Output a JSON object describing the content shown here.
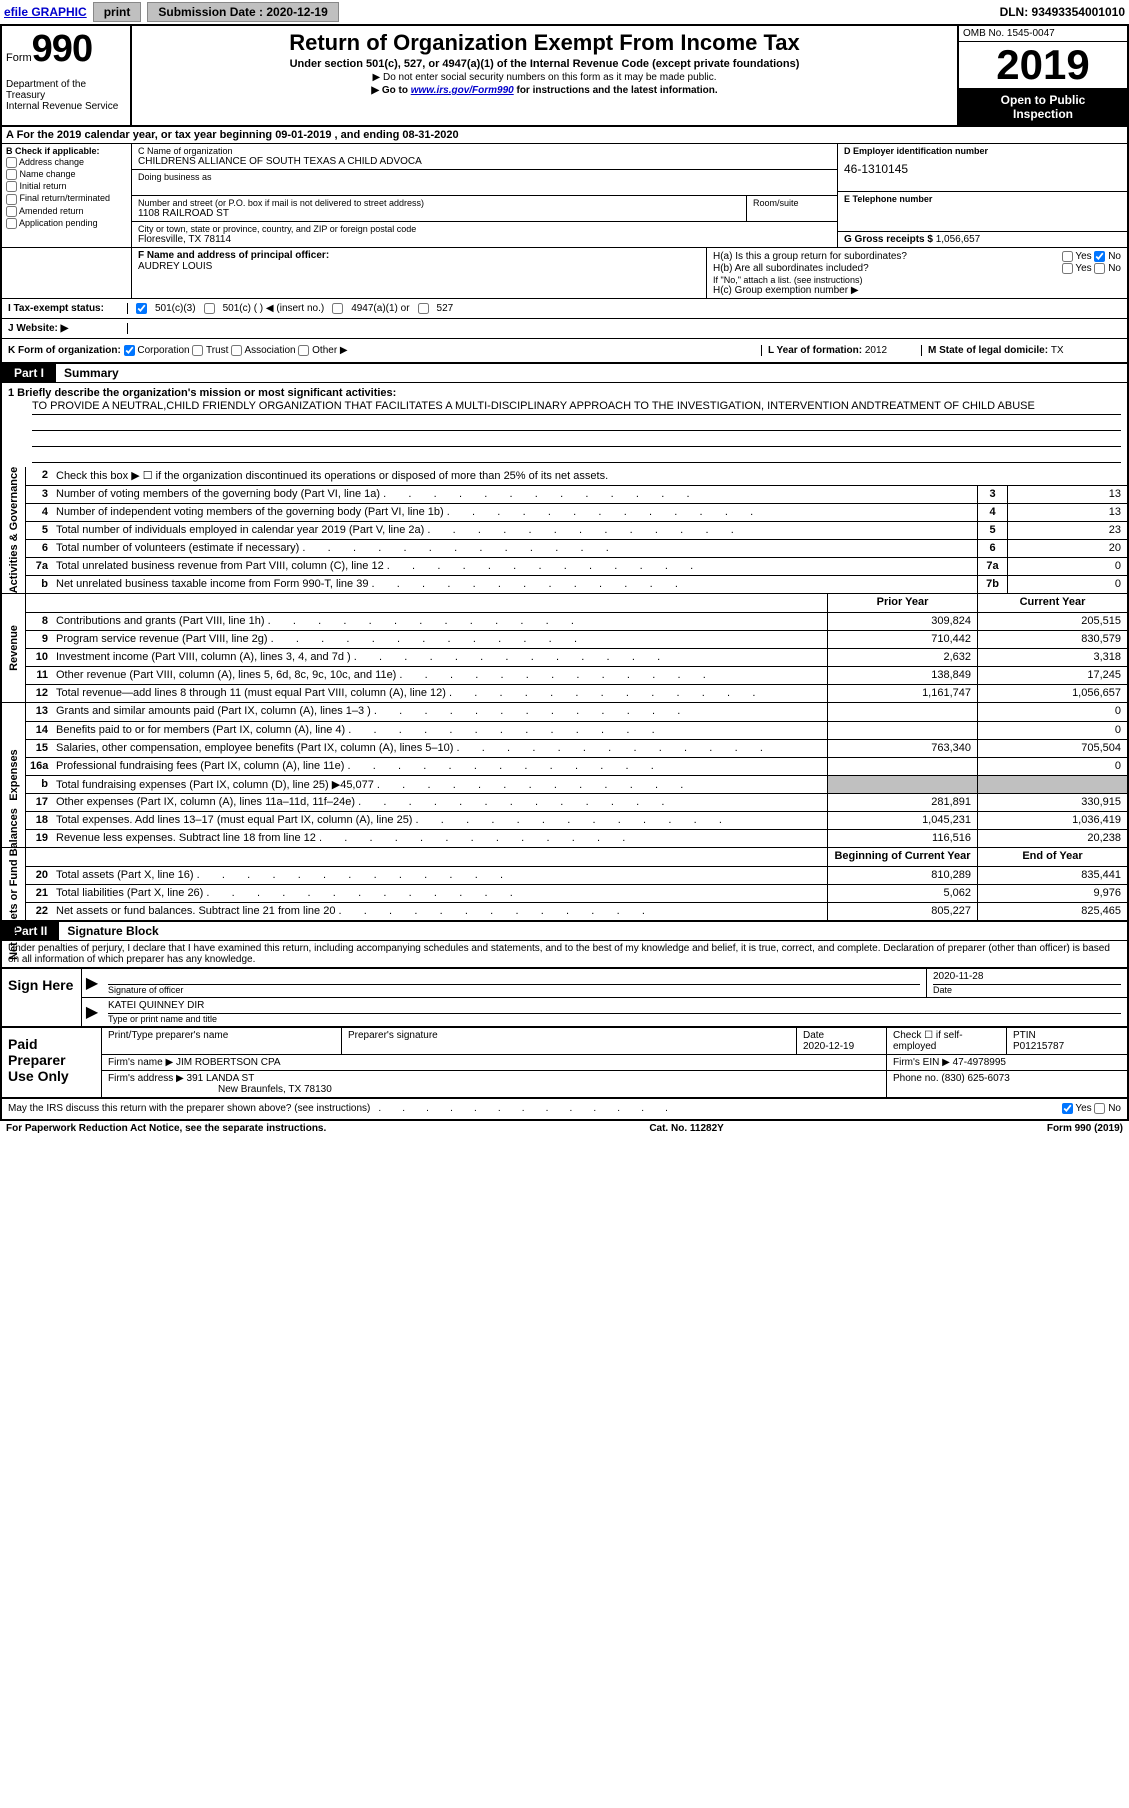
{
  "colors": {
    "link": "#0000cc",
    "black": "#000000",
    "white": "#ffffff",
    "gray_btn": "#c0c0c0",
    "shade": "#c0c0c0"
  },
  "topbar": {
    "efile": "efile GRAPHIC",
    "print": "print",
    "sub_date_lbl": "Submission Date : 2020-12-19",
    "dln": "DLN: 93493354001010"
  },
  "header": {
    "form_word": "Form",
    "form_no": "990",
    "dept": "Department of the Treasury",
    "irs": "Internal Revenue Service",
    "title": "Return of Organization Exempt From Income Tax",
    "sub1": "Under section 501(c), 527, or 4947(a)(1) of the Internal Revenue Code (except private foundations)",
    "sub2": "▶ Do not enter social security numbers on this form as it may be made public.",
    "sub3_a": "▶ Go to ",
    "sub3_link": "www.irs.gov/Form990",
    "sub3_b": " for instructions and the latest information.",
    "omb": "OMB No. 1545-0047",
    "year": "2019",
    "open1": "Open to Public",
    "open2": "Inspection"
  },
  "tax_year": "A For the 2019 calendar year, or tax year beginning 09-01-2019    , and ending 08-31-2020",
  "section_b": {
    "hdr": "B Check if applicable:",
    "opts": [
      "Address change",
      "Name change",
      "Initial return",
      "Final return/terminated",
      "Amended return",
      "Application pending"
    ],
    "c_lbl": "C Name of organization",
    "c_val": "CHILDRENS ALLIANCE OF SOUTH TEXAS A CHILD ADVOCA",
    "dba_lbl": "Doing business as",
    "addr_lbl": "Number and street (or P.O. box if mail is not delivered to street address)",
    "addr_val": "1108 RAILROAD ST",
    "room_lbl": "Room/suite",
    "city_lbl": "City or town, state or province, country, and ZIP or foreign postal code",
    "city_val": "Floresville, TX  78114",
    "d_lbl": "D Employer identification number",
    "d_val": "46-1310145",
    "e_lbl": "E Telephone number",
    "g_lbl": "G Gross receipts $ ",
    "g_val": "1,056,657"
  },
  "section_f": {
    "f_lbl": "F  Name and address of principal officer:",
    "f_val": "AUDREY LOUIS",
    "ha_lbl": "H(a)  Is this a group return for subordinates?",
    "hb_lbl": "H(b)  Are all subordinates included?",
    "hb_note": "If \"No,\" attach a list. (see instructions)",
    "hc_lbl": "H(c)  Group exemption number ▶",
    "yes": "Yes",
    "no": "No"
  },
  "tax_exempt": {
    "i_lbl": "I  Tax-exempt status:",
    "501c3": "501(c)(3)",
    "501c": "501(c) (   ) ◀ (insert no.)",
    "4947": "4947(a)(1) or",
    "527": "527"
  },
  "website": {
    "j_lbl": "J  Website: ▶"
  },
  "k_row": {
    "k_lbl": "K Form of organization:",
    "corp": "Corporation",
    "trust": "Trust",
    "assoc": "Association",
    "other": "Other ▶",
    "l_lbl": "L Year of formation: ",
    "l_val": "2012",
    "m_lbl": "M State of legal domicile: ",
    "m_val": "TX"
  },
  "part1": {
    "tab": "Part I",
    "label": "Summary"
  },
  "mission": {
    "line1_lbl": "1  Briefly describe the organization's mission or most significant activities:",
    "line1_val": "TO PROVIDE A NEUTRAL,CHILD FRIENDLY ORGANIZATION THAT FACILITATES A MULTI-DISCIPLINARY APPROACH TO THE INVESTIGATION, INTERVENTION ANDTREATMENT OF CHILD ABUSE"
  },
  "vtabs": {
    "gov": "Activities & Governance",
    "rev": "Revenue",
    "exp": "Expenses",
    "net": "Net Assets or Fund Balances"
  },
  "gov_lines": [
    {
      "n": "2",
      "d": "Check this box ▶ ☐  if the organization discontinued its operations or disposed of more than 25% of its net assets."
    },
    {
      "n": "3",
      "d": "Number of voting members of the governing body (Part VI, line 1a)",
      "bn": "3",
      "bv": "13"
    },
    {
      "n": "4",
      "d": "Number of independent voting members of the governing body (Part VI, line 1b)",
      "bn": "4",
      "bv": "13"
    },
    {
      "n": "5",
      "d": "Total number of individuals employed in calendar year 2019 (Part V, line 2a)",
      "bn": "5",
      "bv": "23"
    },
    {
      "n": "6",
      "d": "Total number of volunteers (estimate if necessary)",
      "bn": "6",
      "bv": "20"
    },
    {
      "n": "7a",
      "d": "Total unrelated business revenue from Part VIII, column (C), line 12",
      "bn": "7a",
      "bv": "0"
    },
    {
      "n": "b",
      "d": "Net unrelated business taxable income from Form 990-T, line 39",
      "bn": "7b",
      "bv": "0"
    }
  ],
  "py_cy_hdr": {
    "py": "Prior Year",
    "cy": "Current Year"
  },
  "rev_lines": [
    {
      "n": "8",
      "d": "Contributions and grants (Part VIII, line 1h)",
      "py": "309,824",
      "cy": "205,515"
    },
    {
      "n": "9",
      "d": "Program service revenue (Part VIII, line 2g)",
      "py": "710,442",
      "cy": "830,579"
    },
    {
      "n": "10",
      "d": "Investment income (Part VIII, column (A), lines 3, 4, and 7d )",
      "py": "2,632",
      "cy": "3,318"
    },
    {
      "n": "11",
      "d": "Other revenue (Part VIII, column (A), lines 5, 6d, 8c, 9c, 10c, and 11e)",
      "py": "138,849",
      "cy": "17,245"
    },
    {
      "n": "12",
      "d": "Total revenue—add lines 8 through 11 (must equal Part VIII, column (A), line 12)",
      "py": "1,161,747",
      "cy": "1,056,657"
    }
  ],
  "exp_lines": [
    {
      "n": "13",
      "d": "Grants and similar amounts paid (Part IX, column (A), lines 1–3 )",
      "py": "",
      "cy": "0"
    },
    {
      "n": "14",
      "d": "Benefits paid to or for members (Part IX, column (A), line 4)",
      "py": "",
      "cy": "0"
    },
    {
      "n": "15",
      "d": "Salaries, other compensation, employee benefits (Part IX, column (A), lines 5–10)",
      "py": "763,340",
      "cy": "705,504"
    },
    {
      "n": "16a",
      "d": "Professional fundraising fees (Part IX, column (A), line 11e)",
      "py": "",
      "cy": "0"
    },
    {
      "n": "b",
      "d": "Total fundraising expenses (Part IX, column (D), line 25) ▶45,077",
      "py": "SHADE",
      "cy": "SHADE"
    },
    {
      "n": "17",
      "d": "Other expenses (Part IX, column (A), lines 11a–11d, 11f–24e)",
      "py": "281,891",
      "cy": "330,915"
    },
    {
      "n": "18",
      "d": "Total expenses. Add lines 13–17 (must equal Part IX, column (A), line 25)",
      "py": "1,045,231",
      "cy": "1,036,419"
    },
    {
      "n": "19",
      "d": "Revenue less expenses. Subtract line 18 from line 12",
      "py": "116,516",
      "cy": "20,238"
    }
  ],
  "net_hdr": {
    "py": "Beginning of Current Year",
    "cy": "End of Year"
  },
  "net_lines": [
    {
      "n": "20",
      "d": "Total assets (Part X, line 16)",
      "py": "810,289",
      "cy": "835,441"
    },
    {
      "n": "21",
      "d": "Total liabilities (Part X, line 26)",
      "py": "5,062",
      "cy": "9,976"
    },
    {
      "n": "22",
      "d": "Net assets or fund balances. Subtract line 21 from line 20",
      "py": "805,227",
      "cy": "825,465"
    }
  ],
  "part2": {
    "tab": "Part II",
    "label": "Signature Block"
  },
  "sig_text": "Under penalties of perjury, I declare that I have examined this return, including accompanying schedules and statements, and to the best of my knowledge and belief, it is true, correct, and complete. Declaration of preparer (other than officer) is based on all information of which preparer has any knowledge.",
  "sign": {
    "left": "Sign Here",
    "sig_lbl": "Signature of officer",
    "date_lbl": "Date",
    "date_val": "2020-11-28",
    "name_val": "KATEI QUINNEY DIR",
    "name_lbl": "Type or print name and title"
  },
  "prep": {
    "left": "Paid Preparer Use Only",
    "pt_name_lbl": "Print/Type preparer's name",
    "pt_sig_lbl": "Preparer's signature",
    "date_lbl": "Date",
    "date_val": "2020-12-19",
    "check_lbl": "Check ☐ if self-employed",
    "ptin_lbl": "PTIN",
    "ptin_val": "P01215787",
    "firm_name_lbl": "Firm's name     ▶ ",
    "firm_name_val": "JIM ROBERTSON CPA",
    "firm_ein_lbl": "Firm's EIN ▶ ",
    "firm_ein_val": "47-4978995",
    "firm_addr_lbl": "Firm's address ▶ ",
    "firm_addr_val1": "391 LANDA ST",
    "firm_addr_val2": "New Braunfels, TX  78130",
    "phone_lbl": "Phone no. ",
    "phone_val": "(830) 625-6073"
  },
  "discuss": {
    "q": "May the IRS discuss this return with the preparer shown above? (see instructions)",
    "yes": "Yes",
    "no": "No"
  },
  "footer": {
    "l": "For Paperwork Reduction Act Notice, see the separate instructions.",
    "m": "Cat. No. 11282Y",
    "r": "Form 990 (2019)"
  }
}
